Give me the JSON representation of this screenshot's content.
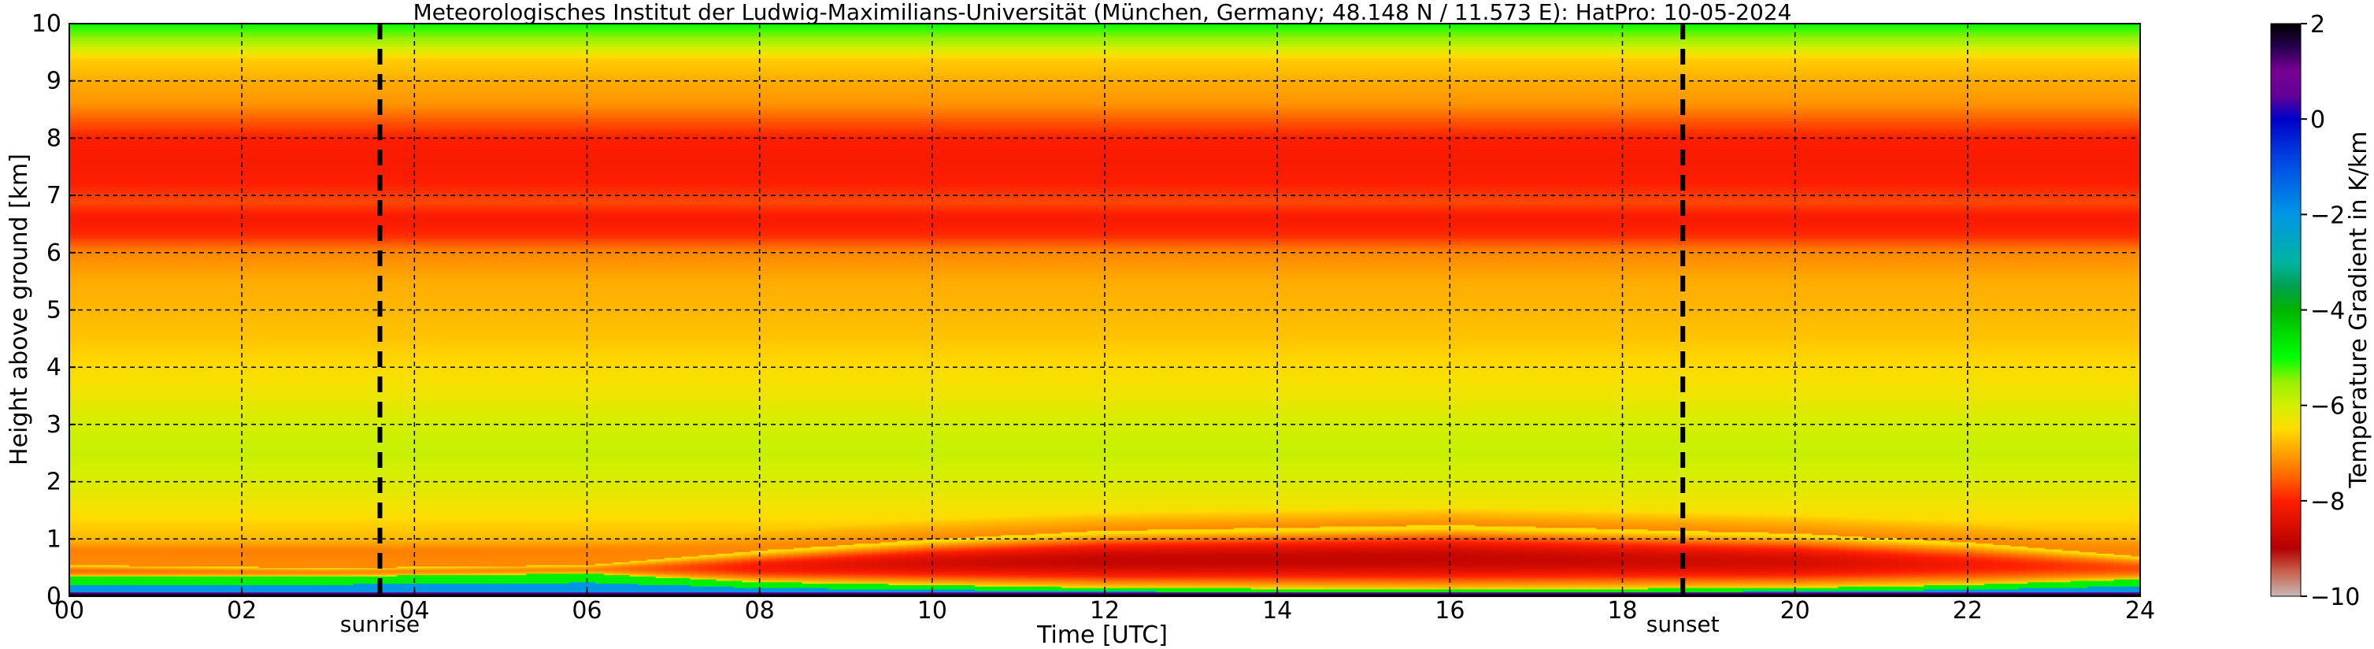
{
  "chart_data": {
    "type": "heatmap",
    "title": "Meteorologisches Institut der Ludwig-Maximilians-Universität (München, Germany; 48.148 N / 11.573 E):    HatPro: 10-05-2024",
    "xlabel": "Time [UTC]",
    "ylabel": "Height above ground [km]",
    "xlim": [
      0,
      24
    ],
    "ylim": [
      0,
      10
    ],
    "x_ticks": [
      "00",
      "02",
      "04",
      "06",
      "08",
      "10",
      "12",
      "14",
      "16",
      "18",
      "20",
      "22",
      "24"
    ],
    "y_ticks": [
      "0",
      "1",
      "2",
      "3",
      "4",
      "5",
      "6",
      "7",
      "8",
      "9",
      "10"
    ],
    "grid": true,
    "markers": [
      {
        "label": "sunrise",
        "time_utc": 3.6
      },
      {
        "label": "sunset",
        "time_utc": 18.7
      }
    ],
    "colorbar": {
      "label": "Temperature Gradient in K/km",
      "range": [
        -10,
        2
      ],
      "ticks": [
        "2",
        "0",
        "−2",
        "−4",
        "−6",
        "−8",
        "−10"
      ],
      "colors": [
        {
          "value": -10,
          "color": "#c8b8b8"
        },
        {
          "value": -9.5,
          "color": "#c86450"
        },
        {
          "value": -9,
          "color": "#b40000"
        },
        {
          "value": -8,
          "color": "#ff1e00"
        },
        {
          "value": -7.5,
          "color": "#ff6400"
        },
        {
          "value": -7,
          "color": "#ffa000"
        },
        {
          "value": -6.5,
          "color": "#ffdc00"
        },
        {
          "value": -6,
          "color": "#d2f000"
        },
        {
          "value": -5.5,
          "color": "#96f000"
        },
        {
          "value": -5,
          "color": "#00ff00"
        },
        {
          "value": -4.5,
          "color": "#00dc00"
        },
        {
          "value": -4,
          "color": "#00b400"
        },
        {
          "value": -3.5,
          "color": "#00a050"
        },
        {
          "value": -3,
          "color": "#00b4a0"
        },
        {
          "value": -2,
          "color": "#0096e6"
        },
        {
          "value": -1,
          "color": "#0050e6"
        },
        {
          "value": 0,
          "color": "#0000c8"
        },
        {
          "value": 0.5,
          "color": "#640096"
        },
        {
          "value": 1,
          "color": "#780096"
        },
        {
          "value": 1.5,
          "color": "#280050"
        },
        {
          "value": 2,
          "color": "#000000"
        }
      ]
    },
    "profile_by_height_km": [
      {
        "height_km": 0.0,
        "gradient": 1.8
      },
      {
        "height_km": 0.05,
        "gradient": 0.5
      },
      {
        "height_km": 0.12,
        "gradient": -1
      },
      {
        "height_km": 0.2,
        "gradient": -3
      },
      {
        "height_km": 0.3,
        "gradient": -4.8
      },
      {
        "height_km": 0.45,
        "gradient": -6.5
      },
      {
        "height_km": 0.6,
        "gradient": -7.2
      },
      {
        "height_km": 0.8,
        "gradient": -7.3
      },
      {
        "height_km": 1.0,
        "gradient": -6.8
      },
      {
        "height_km": 1.5,
        "gradient": -6.4
      },
      {
        "height_km": 2.0,
        "gradient": -6.1
      },
      {
        "height_km": 2.5,
        "gradient": -5.9
      },
      {
        "height_km": 3.0,
        "gradient": -6.0
      },
      {
        "height_km": 3.5,
        "gradient": -6.3
      },
      {
        "height_km": 4.0,
        "gradient": -6.5
      },
      {
        "height_km": 4.5,
        "gradient": -6.7
      },
      {
        "height_km": 5.0,
        "gradient": -6.8
      },
      {
        "height_km": 5.5,
        "gradient": -6.9
      },
      {
        "height_km": 6.0,
        "gradient": -7.2
      },
      {
        "height_km": 6.3,
        "gradient": -7.9
      },
      {
        "height_km": 6.6,
        "gradient": -8.1
      },
      {
        "height_km": 6.9,
        "gradient": -7.7
      },
      {
        "height_km": 7.2,
        "gradient": -8.0
      },
      {
        "height_km": 7.6,
        "gradient": -8.1
      },
      {
        "height_km": 8.0,
        "gradient": -8.0
      },
      {
        "height_km": 8.3,
        "gradient": -7.6
      },
      {
        "height_km": 8.6,
        "gradient": -7.1
      },
      {
        "height_km": 9.0,
        "gradient": -6.9
      },
      {
        "height_km": 9.4,
        "gradient": -6.6
      },
      {
        "height_km": 9.7,
        "gradient": -5.6
      },
      {
        "height_km": 10.0,
        "gradient": -5.0
      }
    ],
    "boundary_layer_by_time": [
      {
        "time_utc": 0,
        "green_top_km": 0.35,
        "red_top_km": 0.55,
        "red_strength": 0.4
      },
      {
        "time_utc": 3,
        "green_top_km": 0.35,
        "red_top_km": 0.5,
        "red_strength": 0.3
      },
      {
        "time_utc": 6,
        "green_top_km": 0.4,
        "red_top_km": 0.55,
        "red_strength": 0.3
      },
      {
        "time_utc": 8,
        "green_top_km": 0.25,
        "red_top_km": 0.8,
        "red_strength": 0.7
      },
      {
        "time_utc": 10,
        "green_top_km": 0.2,
        "red_top_km": 1.0,
        "red_strength": 0.9
      },
      {
        "time_utc": 12,
        "green_top_km": 0.15,
        "red_top_km": 1.15,
        "red_strength": 1.0
      },
      {
        "time_utc": 16,
        "green_top_km": 0.12,
        "red_top_km": 1.25,
        "red_strength": 1.0
      },
      {
        "time_utc": 20,
        "green_top_km": 0.15,
        "red_top_km": 1.1,
        "red_strength": 0.9
      },
      {
        "time_utc": 22,
        "green_top_km": 0.2,
        "red_top_km": 0.95,
        "red_strength": 0.7
      },
      {
        "time_utc": 24,
        "green_top_km": 0.3,
        "red_top_km": 0.7,
        "red_strength": 0.5
      }
    ]
  }
}
